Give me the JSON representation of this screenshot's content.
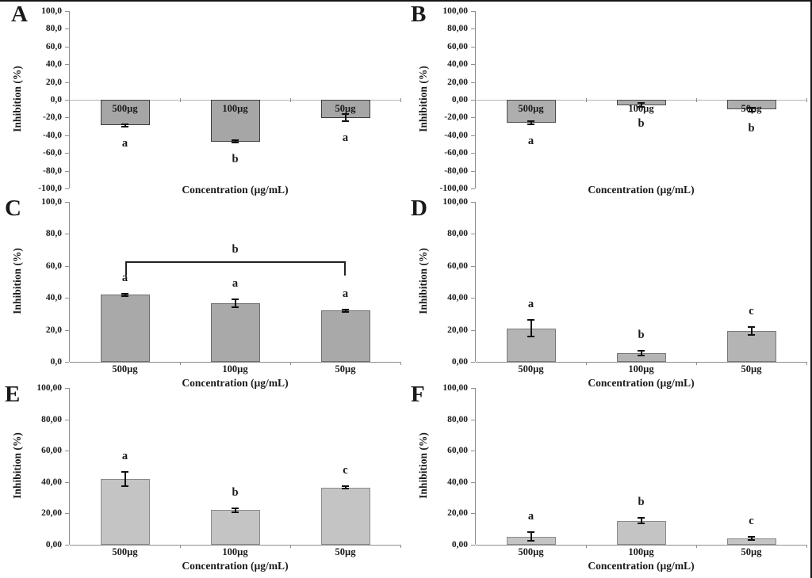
{
  "figure": {
    "background": "#ffffff",
    "frame_color": "#161616",
    "ylabel": "Inhibition (%)",
    "xlabel": "Concentration (µg/mL)",
    "categories": [
      "500µg",
      "100µg",
      "50µg"
    ]
  },
  "chart_data": [
    {
      "type": "bar",
      "panel": "A",
      "ylabel": "Inhibition (%)",
      "xlabel": "Concentration (µg/mL)",
      "categories": [
        "500µg",
        "100µg",
        "50µg"
      ],
      "values": [
        -29,
        -47,
        -20.5
      ],
      "errors": [
        1.5,
        1.5,
        4
      ],
      "sig_letters": [
        "a",
        "b",
        "a"
      ],
      "ylim": [
        -100,
        100
      ],
      "ystep": 20,
      "yticks": [
        "100,0",
        "80,0",
        "60,0",
        "40,0",
        "20,0",
        "0,0",
        "-20,0",
        "-40,0",
        "-60,0",
        "-80,0",
        "-100,0"
      ],
      "bar_label_position": "inside",
      "bar_fill": "#a6a6a6",
      "bar_border": "#3d3d3d",
      "grid": false,
      "legend": false
    },
    {
      "type": "bar",
      "panel": "B",
      "ylabel": "Inhibition (%)",
      "xlabel": "Concentration (µg/mL)",
      "categories": [
        "500µg",
        "100µg",
        "50µg"
      ],
      "values": [
        -26,
        -6,
        -11
      ],
      "errors": [
        2,
        2,
        2
      ],
      "sig_letters": [
        "a",
        "b",
        "b"
      ],
      "ylim": [
        -100,
        100
      ],
      "ystep": 20,
      "yticks": [
        "100,00",
        "80,00",
        "60,00",
        "40,00",
        "20,00",
        "0,00",
        "-20,00",
        "-40,00",
        "-60,00",
        "-80,00",
        "-100,00"
      ],
      "bar_label_position": "inside",
      "bar_fill": "#aeaeae",
      "bar_border": "#4d4d4d",
      "grid": false,
      "legend": false
    },
    {
      "type": "bar",
      "panel": "C",
      "ylabel": "Inhibition (%)",
      "xlabel": "Concentration (µg/mL)",
      "categories": [
        "500µg",
        "100µg",
        "50µg"
      ],
      "values": [
        42,
        36.5,
        32
      ],
      "errors": [
        0.8,
        2.5,
        0.8
      ],
      "sig_letters": [
        "a",
        "a",
        "a"
      ],
      "bracket": {
        "label": "b",
        "from": 0,
        "to": 2,
        "y": 63,
        "drop": 18
      },
      "ylim": [
        0,
        100
      ],
      "ystep": 20,
      "yticks": [
        "100,0",
        "80,0",
        "60,0",
        "40,0",
        "20,0",
        "0,0"
      ],
      "bar_label_position": "below",
      "bar_fill": "#a9a9a9",
      "bar_border": "#6e6e6e",
      "grid": false,
      "legend": false
    },
    {
      "type": "bar",
      "panel": "D",
      "ylabel": "Inhibition (%)",
      "xlabel": "Concentration (µg/mL)",
      "categories": [
        "500µg",
        "100µg",
        "50µg"
      ],
      "values": [
        21,
        5.5,
        19.5
      ],
      "errors": [
        5,
        1.5,
        2.5
      ],
      "sig_letters": [
        "a",
        "b",
        "c"
      ],
      "ylim": [
        0,
        100
      ],
      "ystep": 20,
      "yticks": [
        "100,00",
        "80,00",
        "60,00",
        "40,00",
        "20,00",
        "0,00"
      ],
      "bar_label_position": "below",
      "bar_fill": "#b4b4b4",
      "bar_border": "#787878",
      "grid": false,
      "legend": false
    },
    {
      "type": "bar",
      "panel": "E",
      "ylabel": "Inhibition (%)",
      "xlabel": "Concentration (µg/mL)",
      "categories": [
        "500µg",
        "100µg",
        "50µg"
      ],
      "values": [
        42,
        22,
        36.5
      ],
      "errors": [
        4.5,
        1.2,
        0.8
      ],
      "sig_letters": [
        "a",
        "b",
        "c"
      ],
      "ylim": [
        0,
        100
      ],
      "ystep": 20,
      "yticks": [
        "100,00",
        "80,00",
        "60,00",
        "40,00",
        "20,00",
        "0,00"
      ],
      "bar_label_position": "below",
      "bar_fill": "#c4c4c4",
      "bar_border": "#8a8a8a",
      "grid": false,
      "legend": false
    },
    {
      "type": "bar",
      "panel": "F",
      "ylabel": "Inhibition (%)",
      "xlabel": "Concentration (µg/mL)",
      "categories": [
        "500µg",
        "100µg",
        "50µg"
      ],
      "values": [
        5.3,
        15.3,
        4
      ],
      "errors": [
        2.7,
        1.7,
        1
      ],
      "sig_letters": [
        "a",
        "b",
        "c"
      ],
      "ylim": [
        0,
        100
      ],
      "ystep": 20,
      "yticks": [
        "100,00",
        "80,00",
        "60,00",
        "40,00",
        "20,00",
        "0,00"
      ],
      "bar_label_position": "below",
      "bar_fill": "#c4c4c4",
      "bar_border": "#8a8a8a",
      "grid": false,
      "legend": false
    }
  ]
}
